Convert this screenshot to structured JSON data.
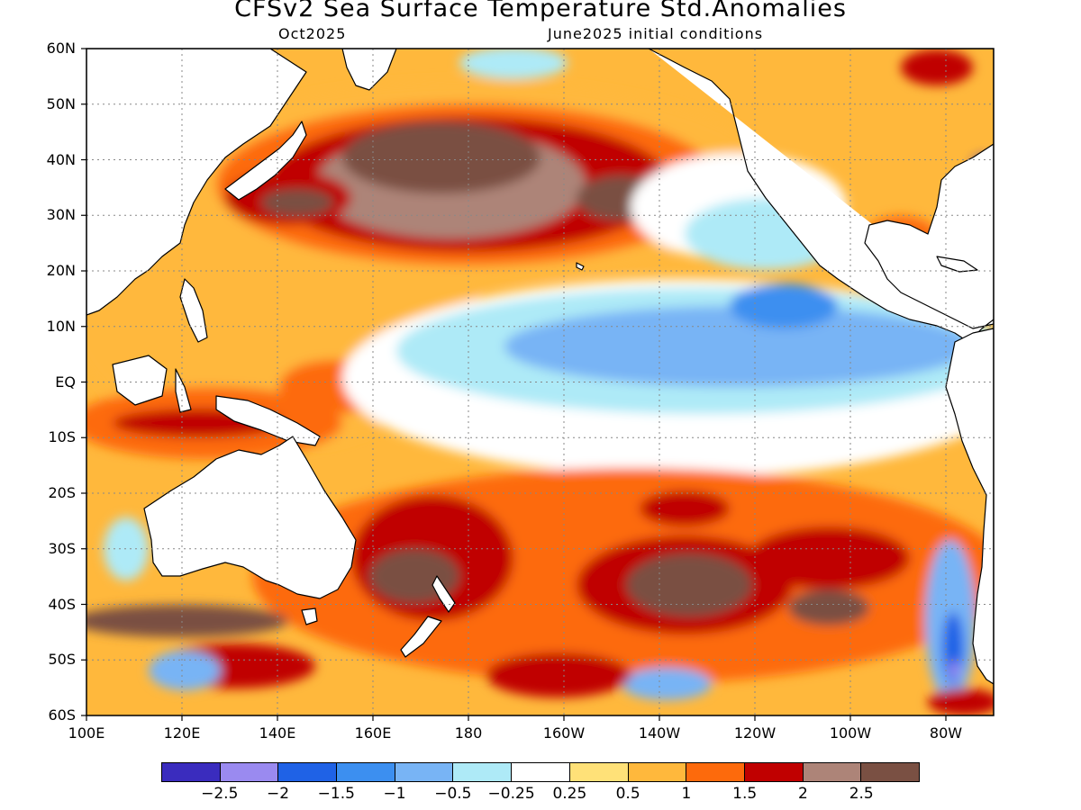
{
  "title": "CFSv2 Sea Surface Temperature Std.Anomalies",
  "subtitle_left": "Oct2025",
  "subtitle_right": "June2025 initial conditions",
  "map": {
    "lon_range": [
      100,
      290
    ],
    "lat_range": [
      -60,
      60
    ],
    "lat_labels": [
      {
        "lat": 60,
        "text": "60N"
      },
      {
        "lat": 50,
        "text": "50N"
      },
      {
        "lat": 40,
        "text": "40N"
      },
      {
        "lat": 30,
        "text": "30N"
      },
      {
        "lat": 20,
        "text": "20N"
      },
      {
        "lat": 10,
        "text": "10N"
      },
      {
        "lat": 0,
        "text": "EQ"
      },
      {
        "lat": -10,
        "text": "10S"
      },
      {
        "lat": -20,
        "text": "20S"
      },
      {
        "lat": -30,
        "text": "30S"
      },
      {
        "lat": -40,
        "text": "40S"
      },
      {
        "lat": -50,
        "text": "50S"
      },
      {
        "lat": -60,
        "text": "60S"
      }
    ],
    "lon_labels": [
      {
        "lon": 100,
        "text": "100E"
      },
      {
        "lon": 120,
        "text": "120E"
      },
      {
        "lon": 140,
        "text": "140E"
      },
      {
        "lon": 160,
        "text": "160E"
      },
      {
        "lon": 180,
        "text": "180"
      },
      {
        "lon": 200,
        "text": "160W"
      },
      {
        "lon": 220,
        "text": "140W"
      },
      {
        "lon": 240,
        "text": "120W"
      },
      {
        "lon": 260,
        "text": "100W"
      },
      {
        "lon": 280,
        "text": "80W"
      }
    ],
    "gridlines": "dotted",
    "land_color": "#ffffff",
    "coastline_color": "#000000"
  },
  "colorbar": {
    "colors": [
      "#3a2cbe",
      "#9a8af0",
      "#1f62e6",
      "#3c8ff0",
      "#78b4f5",
      "#aeeaf7",
      "#ffffff",
      "#ffe178",
      "#ffb83c",
      "#fd6a0c",
      "#c00000",
      "#ad8478",
      "#7a5043"
    ],
    "labels": [
      "−2.5",
      "−2",
      "−1.5",
      "−1",
      "−0.5",
      "−0.25",
      "0.25",
      "0.5",
      "1",
      "1.5",
      "2",
      "2.5"
    ]
  },
  "anomaly_regions": [
    {
      "level": 0.75,
      "lon": [
        105,
        170
      ],
      "lat": [
        -5,
        35
      ],
      "note": "warm western Pacific"
    },
    {
      "level": 2.4,
      "lon": [
        162,
        205
      ],
      "lat": [
        22,
        48
      ],
      "note": "north Pacific marine heatwave"
    },
    {
      "level": 1.8,
      "lon": [
        140,
        210
      ],
      "lat": [
        18,
        45
      ]
    },
    {
      "level": -0.6,
      "lon": [
        190,
        275
      ],
      "lat": [
        -8,
        18
      ],
      "note": "cool eastern equatorial Pacific"
    },
    {
      "level": -0.3,
      "lon": [
        185,
        285
      ],
      "lat": [
        -20,
        25
      ]
    },
    {
      "level": 1.8,
      "lon": [
        165,
        270
      ],
      "lat": [
        -50,
        -25
      ],
      "note": "warm south Pacific"
    },
    {
      "level": 2.4,
      "lon": [
        210,
        240
      ],
      "lat": [
        -45,
        -32
      ]
    },
    {
      "level": -1.2,
      "lon": [
        275,
        288
      ],
      "lat": [
        -56,
        -30
      ]
    }
  ]
}
